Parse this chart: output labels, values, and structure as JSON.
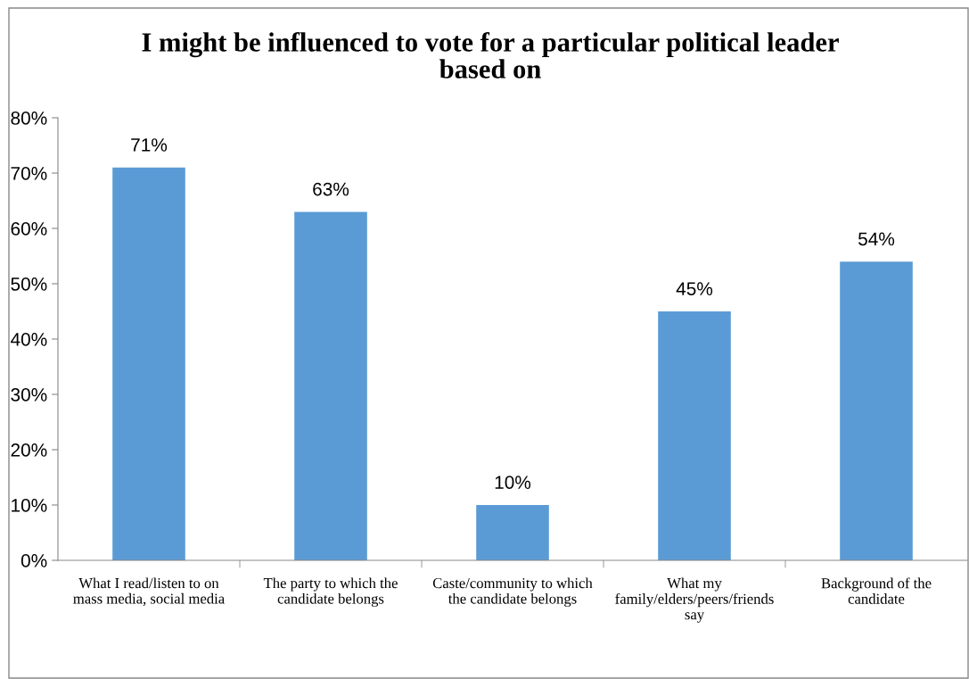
{
  "chart_data": {
    "type": "bar",
    "title": "I might be influenced to vote for a particular political leader based on",
    "categories": [
      "What I read/listen to on mass media, social media",
      "The party to which the candidate belongs",
      "Caste/community to which the candidate belongs",
      "What my family/elders/peers/friends say",
      "Background of the candidate"
    ],
    "values": [
      71,
      63,
      10,
      45,
      54
    ],
    "color": "#5b9bd5",
    "ylim": [
      0,
      80
    ],
    "yticks": [
      {
        "value": 0,
        "label": "0%"
      },
      {
        "value": 10,
        "label": "10%"
      },
      {
        "value": 20,
        "label": "20%"
      },
      {
        "value": 30,
        "label": "30%"
      },
      {
        "value": 40,
        "label": "40%"
      },
      {
        "value": 50,
        "label": "50%"
      },
      {
        "value": 60,
        "label": "60%"
      },
      {
        "value": 70,
        "label": "70%"
      },
      {
        "value": 80,
        "label": "80%"
      }
    ],
    "value_labels": [
      "71%",
      "63%",
      "10%",
      "45%",
      "54%"
    ],
    "grid": false,
    "legend": false
  }
}
